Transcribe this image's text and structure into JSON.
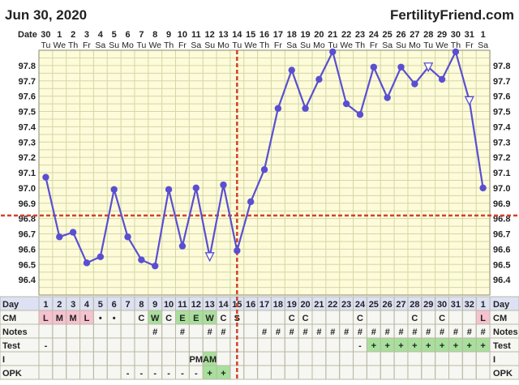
{
  "header": {
    "chart_date": "Jun 30, 2020",
    "site": "FertilityFriend.com"
  },
  "colors": {
    "background": "#fdfbd9",
    "grid": "#d3d7a6",
    "line": "#5a4fd1",
    "coverline": "#d0432b",
    "row_pink": "#f6c2d0",
    "row_green": "#a8df9c",
    "row_header": "#dde1f3"
  },
  "row_labels": {
    "date": "Date",
    "day": "Day",
    "cm": "CM",
    "notes": "Notes",
    "test": "Test",
    "i": "I",
    "opk": "OPK"
  },
  "dates": [
    "30",
    "1",
    "2",
    "3",
    "4",
    "5",
    "6",
    "7",
    "8",
    "9",
    "10",
    "11",
    "12",
    "13",
    "14",
    "15",
    "16",
    "17",
    "18",
    "19",
    "20",
    "21",
    "22",
    "23",
    "24",
    "25",
    "26",
    "27",
    "28",
    "29",
    "30",
    "31",
    "1"
  ],
  "weekdays": [
    "Tu",
    "We",
    "Th",
    "Fr",
    "Sa",
    "Su",
    "Mo",
    "Tu",
    "We",
    "Th",
    "Fr",
    "Sa",
    "Su",
    "Mo",
    "Tu",
    "We",
    "Th",
    "Fr",
    "Sa",
    "Su",
    "Mo",
    "Tu",
    "We",
    "Th",
    "Fr",
    "Sa",
    "Su",
    "Mo",
    "Tu",
    "We",
    "Th",
    "Fr",
    "Sa"
  ],
  "chart_data": {
    "type": "line",
    "x": [
      1,
      2,
      3,
      4,
      5,
      6,
      7,
      8,
      9,
      10,
      11,
      12,
      13,
      14,
      15,
      16,
      17,
      18,
      19,
      20,
      21,
      22,
      23,
      24,
      25,
      26,
      27,
      28,
      29,
      30,
      31,
      32,
      33
    ],
    "temperatures": [
      97.07,
      96.68,
      96.71,
      96.51,
      96.55,
      96.99,
      96.68,
      96.53,
      96.49,
      96.99,
      96.62,
      97.0,
      96.55,
      97.02,
      96.59,
      96.91,
      97.12,
      97.52,
      97.77,
      97.52,
      97.71,
      97.89,
      97.55,
      97.48,
      97.79,
      97.59,
      97.79,
      97.68,
      97.79,
      97.71,
      97.89,
      97.57,
      97.0
    ],
    "open_markers": [
      13,
      29,
      32
    ],
    "ylim": [
      96.3,
      97.9
    ],
    "yticks": [
      "96.4",
      "96.5",
      "96.6",
      "96.7",
      "96.8",
      "96.9",
      "97.0",
      "97.1",
      "97.2",
      "97.3",
      "97.4",
      "97.5",
      "97.6",
      "97.7",
      "97.8"
    ],
    "coverline": 96.82,
    "ovulation_day": 15
  },
  "rows": {
    "day": [
      "1",
      "2",
      "3",
      "4",
      "5",
      "6",
      "7",
      "8",
      "9",
      "10",
      "11",
      "12",
      "13",
      "14",
      "15",
      "16",
      "17",
      "18",
      "19",
      "20",
      "21",
      "22",
      "23",
      "24",
      "25",
      "26",
      "27",
      "28",
      "29",
      "30",
      "31",
      "32",
      "1"
    ],
    "cm": [
      "L",
      "M",
      "M",
      "L",
      "•",
      "•",
      "",
      "C",
      "W",
      "C",
      "E",
      "E",
      "W",
      "C",
      "S",
      "",
      "",
      "",
      "C",
      "C",
      "",
      "",
      "",
      "C",
      "",
      "",
      "",
      "C",
      "",
      "C",
      "",
      "",
      "L"
    ],
    "cm_fill": [
      "pink",
      "pink",
      "pink",
      "pink",
      "",
      "",
      "",
      "",
      "green",
      "",
      "green",
      "green",
      "green",
      "",
      "",
      "",
      "",
      "",
      "",
      "",
      "",
      "",
      "",
      "",
      "",
      "",
      "",
      "",
      "",
      "",
      "",
      "",
      "pink"
    ],
    "notes": [
      "",
      "",
      "",
      "",
      "",
      "",
      "",
      "",
      "#",
      "",
      "#",
      "",
      "#",
      "#",
      "",
      "",
      "#",
      "#",
      "#",
      "#",
      "#",
      "#",
      "#",
      "#",
      "#",
      "#",
      "#",
      "#",
      "#",
      "#",
      "#",
      "#",
      "#"
    ],
    "test": [
      "-",
      "",
      "",
      "",
      "",
      "",
      "",
      "",
      "",
      "",
      "",
      "",
      "",
      "",
      "",
      "",
      "",
      "",
      "",
      "",
      "",
      "",
      "",
      "-",
      "+",
      "+",
      "+",
      "+",
      "+",
      "+",
      "+",
      "+",
      "+"
    ],
    "test_fill": [
      "",
      "",
      "",
      "",
      "",
      "",
      "",
      "",
      "",
      "",
      "",
      "",
      "",
      "",
      "",
      "",
      "",
      "",
      "",
      "",
      "",
      "",
      "",
      "",
      "green",
      "green",
      "green",
      "green",
      "green",
      "green",
      "green",
      "green",
      "green"
    ],
    "i": [
      "",
      "",
      "",
      "",
      "",
      "",
      "",
      "",
      "",
      "",
      "",
      "PM",
      "AM",
      "",
      "",
      "",
      "",
      "",
      "",
      "",
      "",
      "",
      "",
      "",
      "",
      "",
      "",
      "",
      "",
      "",
      "",
      "",
      ""
    ],
    "i_fill": [
      "",
      "",
      "",
      "",
      "",
      "",
      "",
      "",
      "",
      "",
      "",
      "",
      "green",
      "",
      "",
      "",
      "",
      "",
      "",
      "",
      "",
      "",
      "",
      "",
      "",
      "",
      "",
      "",
      "",
      "",
      "",
      "",
      ""
    ],
    "opk": [
      "",
      "",
      "",
      "",
      "",
      "",
      "-",
      "-",
      "-",
      "-",
      "-",
      "-",
      "+",
      "+",
      "",
      "",
      "",
      "",
      "",
      "",
      "",
      "",
      "",
      "",
      "",
      "",
      "",
      "",
      "",
      "",
      "",
      "",
      ""
    ],
    "opk_fill": [
      "",
      "",
      "",
      "",
      "",
      "",
      "",
      "",
      "",
      "",
      "",
      "",
      "green",
      "green",
      "",
      "",
      "",
      "",
      "",
      "",
      "",
      "",
      "",
      "",
      "",
      "",
      "",
      "",
      "",
      "",
      "",
      "",
      ""
    ]
  }
}
